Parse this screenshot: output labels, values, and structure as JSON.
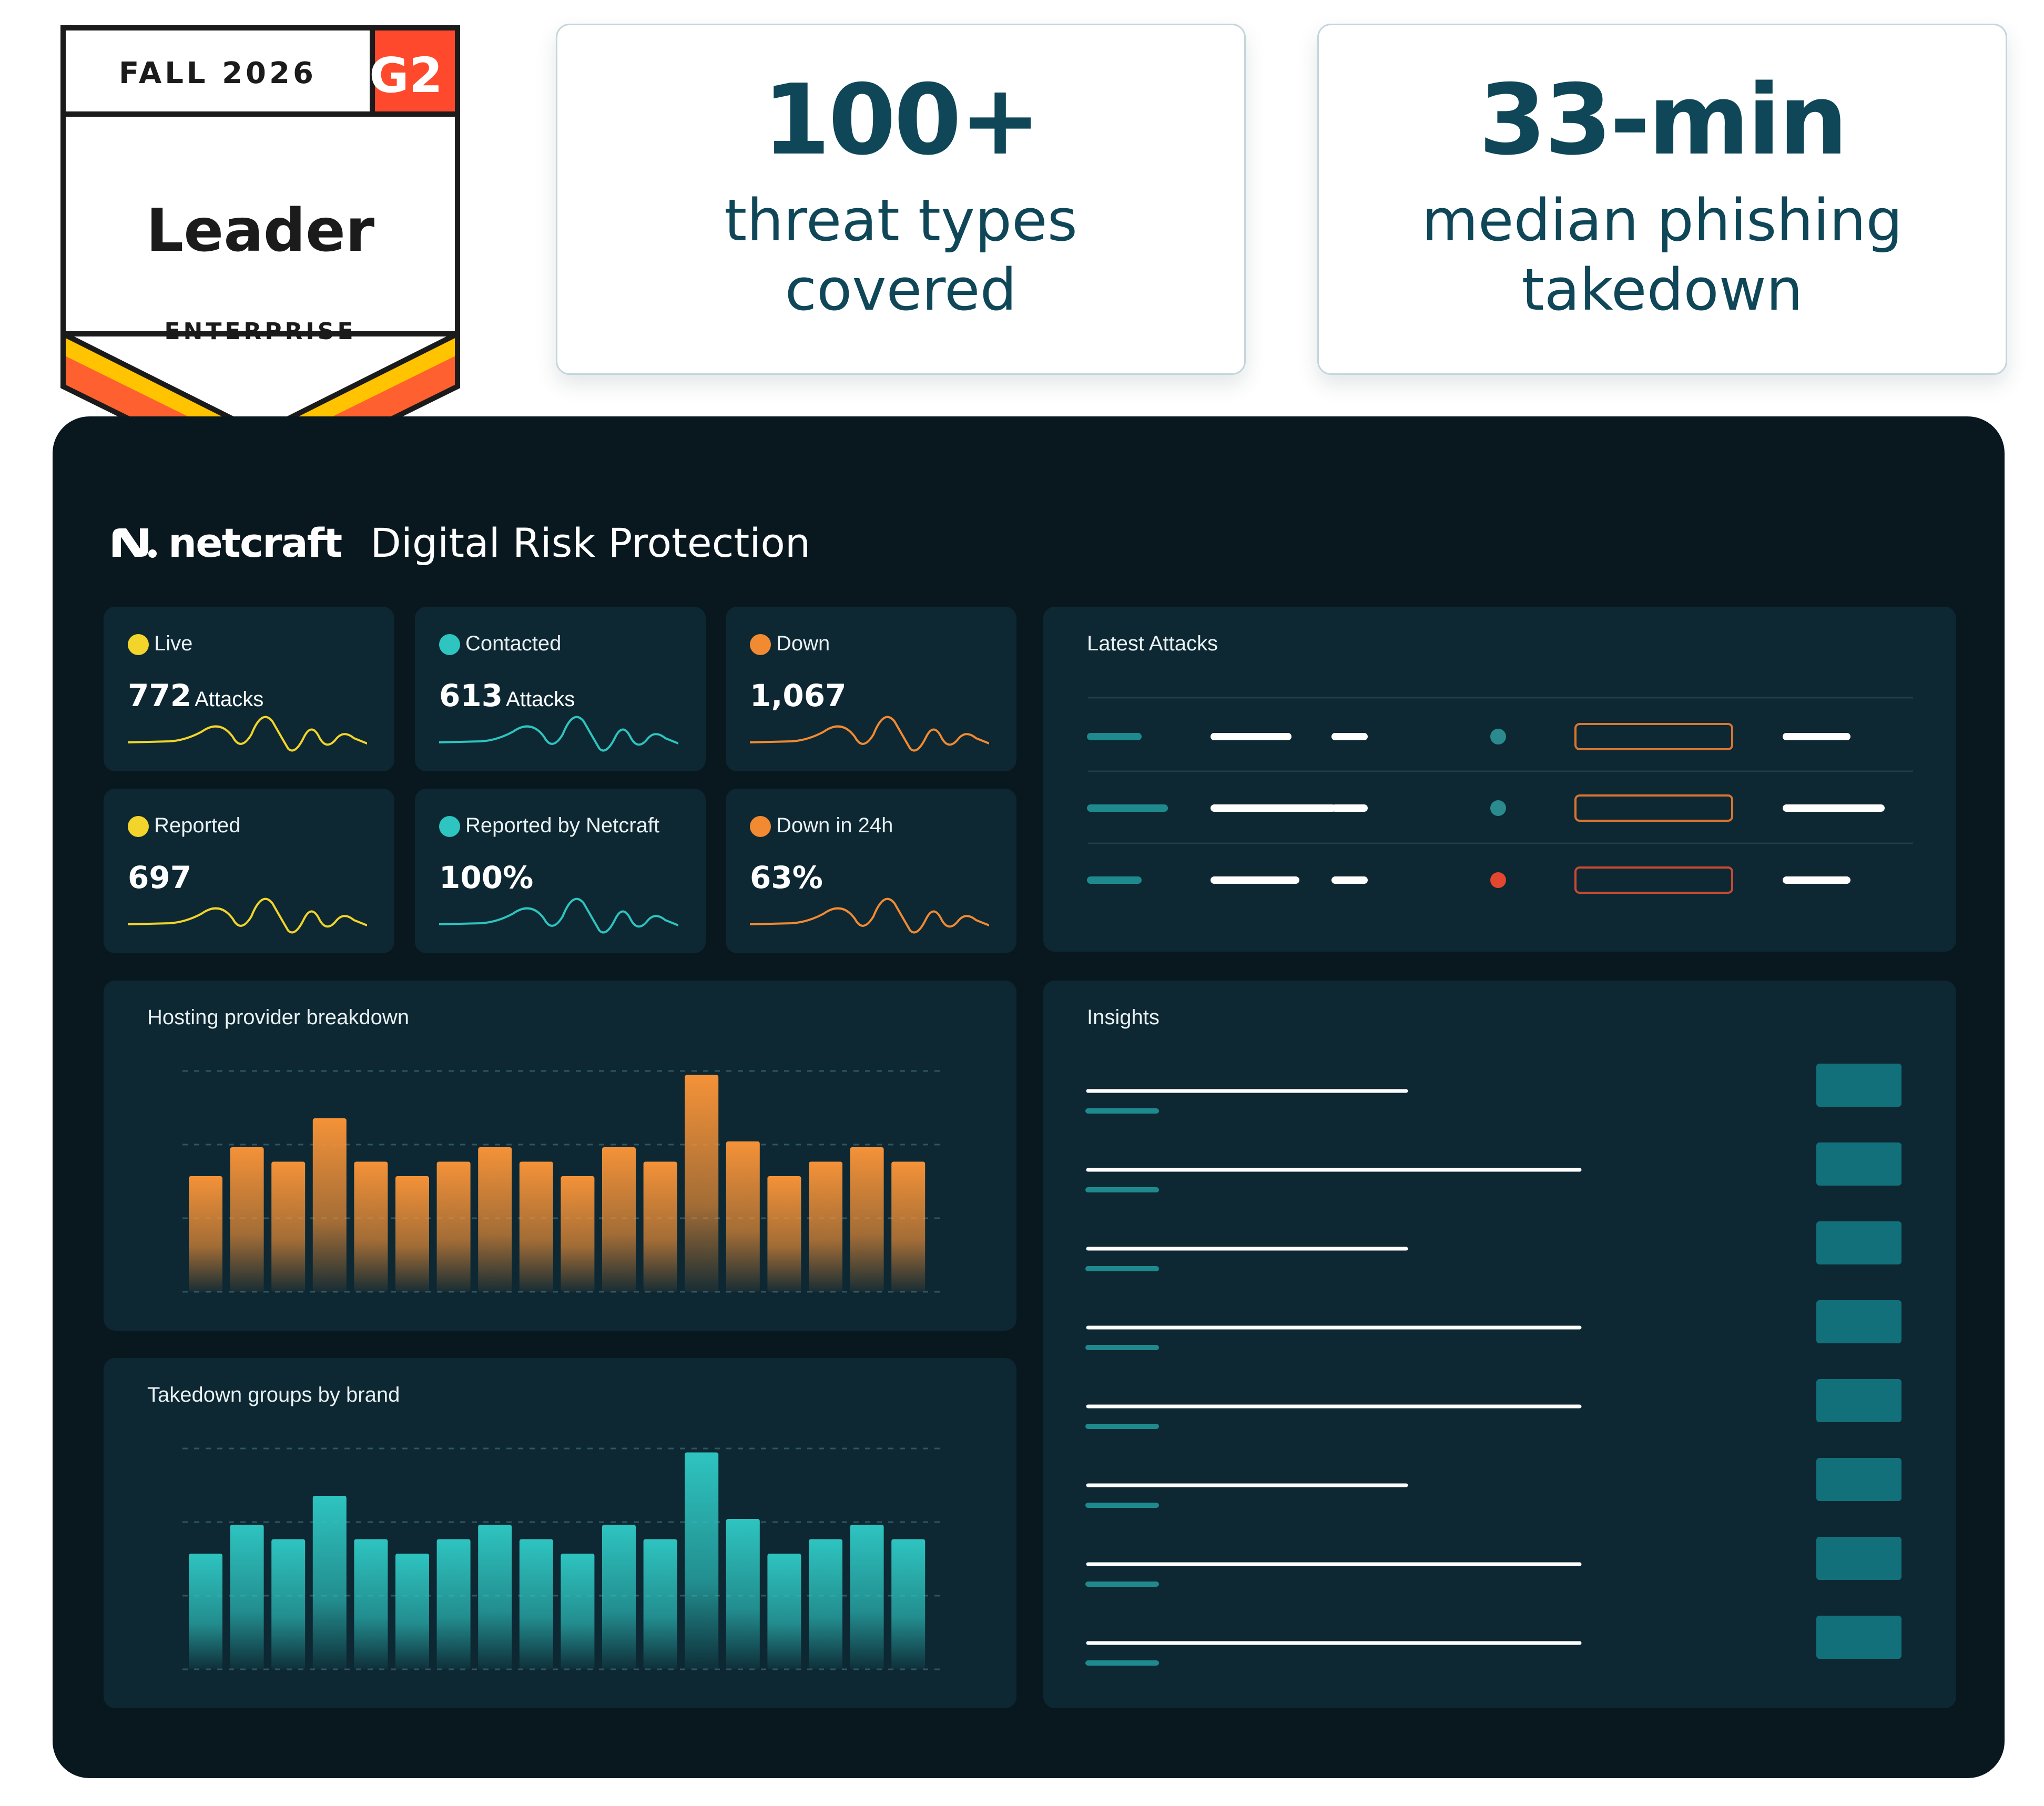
{
  "badge": {
    "season": "FALL 2026",
    "title": "Leader",
    "segment": "ENTERPRISE",
    "logo_text": "G2",
    "colors": {
      "g2_red": "#ff492c",
      "stripe_yellow": "#ffc300",
      "stripe_orange": "#ff6030",
      "stroke": "#1b1b1b"
    }
  },
  "stats": [
    {
      "value": "100+",
      "line1": "threat types",
      "line2": "covered"
    },
    {
      "value": "33-min",
      "line1": "median phishing",
      "line2": "takedown"
    }
  ],
  "dashboard": {
    "brand_name": "netcraft",
    "product_name": "Digital Risk Protection",
    "tiles": [
      {
        "label": "Live",
        "value": "772",
        "unit": "Attacks",
        "color": "#f2d42a"
      },
      {
        "label": "Contacted",
        "value": "613",
        "unit": "Attacks",
        "color": "#2ec4c0"
      },
      {
        "label": "Down",
        "value": "1,067",
        "unit": "",
        "color": "#f28a32"
      },
      {
        "label": "Reported",
        "value": "697",
        "unit": "",
        "color": "#f2d42a"
      },
      {
        "label": "Reported by Netcraft",
        "value": "100%",
        "unit": "",
        "color": "#2ec4c0"
      },
      {
        "label": "Down in 24h",
        "value": "63%",
        "unit": "",
        "color": "#f28a32"
      }
    ],
    "latest_attacks": {
      "title": "Latest Attacks",
      "rows": [
        {
          "status_color": "#2a8a8e",
          "box_color": "#d9752f"
        },
        {
          "status_color": "#2a8a8e",
          "box_color": "#d9752f"
        },
        {
          "status_color": "#e4472f",
          "box_color": "#c84a33"
        }
      ]
    },
    "insights": {
      "title": "Insights",
      "count": 8
    }
  },
  "chart_data": [
    {
      "type": "bar",
      "title": "Hosting provider breakdown",
      "values": [
        4,
        5,
        4.5,
        6,
        4.5,
        4,
        4.5,
        5,
        4.5,
        4,
        5,
        4.5,
        7.5,
        5.2,
        4,
        4.5,
        5,
        4.5
      ],
      "color": "#f49238"
    },
    {
      "type": "bar",
      "title": "Takedown groups by brand",
      "values": [
        4,
        5,
        4.5,
        6,
        4.5,
        4,
        4.5,
        5,
        4.5,
        4,
        5,
        4.5,
        7.5,
        5.2,
        4,
        4.5,
        5,
        4.5
      ],
      "color": "#2ec4c0"
    }
  ]
}
